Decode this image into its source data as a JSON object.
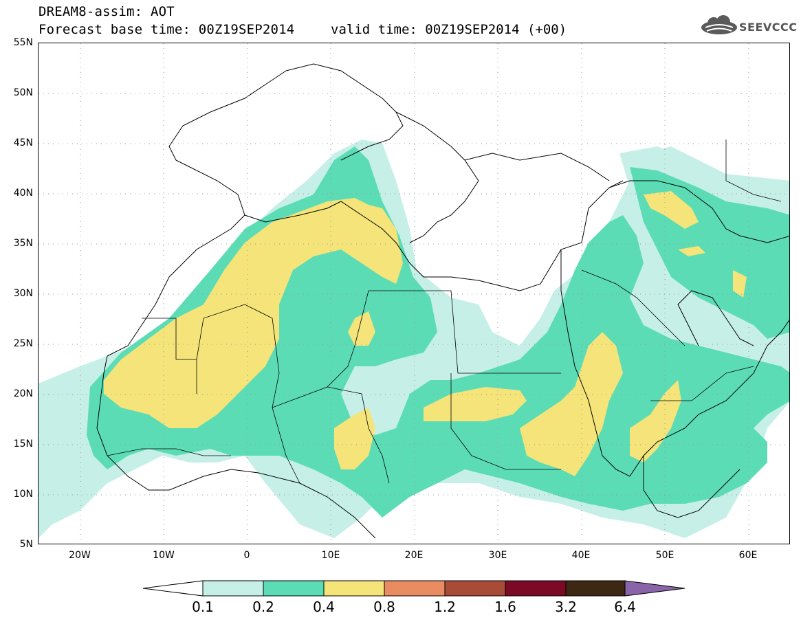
{
  "header": {
    "title": "DREAM8-assim: AOT",
    "base_time": "Forecast base time: 00Z19SEP2014",
    "valid_time": "valid time: 00Z19SEP2014 (+00)",
    "logo_text": "SEEVCCC"
  },
  "map": {
    "lat_labels": [
      "55N",
      "50N",
      "45N",
      "40N",
      "35N",
      "30N",
      "25N",
      "20N",
      "15N",
      "10N",
      "5N"
    ],
    "lon_labels": [
      "20W",
      "10W",
      "0",
      "10E",
      "20E",
      "30E",
      "40E",
      "50E",
      "60E"
    ],
    "lon_range": [
      -25,
      65
    ],
    "lat_range": [
      5,
      55
    ]
  },
  "legend": {
    "levels": [
      "0.1",
      "0.2",
      "0.4",
      "0.8",
      "1.2",
      "1.6",
      "3.2",
      "6.4"
    ],
    "colors": [
      "#ffffff",
      "#c6efe8",
      "#5cdcb5",
      "#f4e47a",
      "#e98c62",
      "#a84c38",
      "#7a0a25",
      "#3d2813",
      "#8a64a8"
    ]
  }
}
